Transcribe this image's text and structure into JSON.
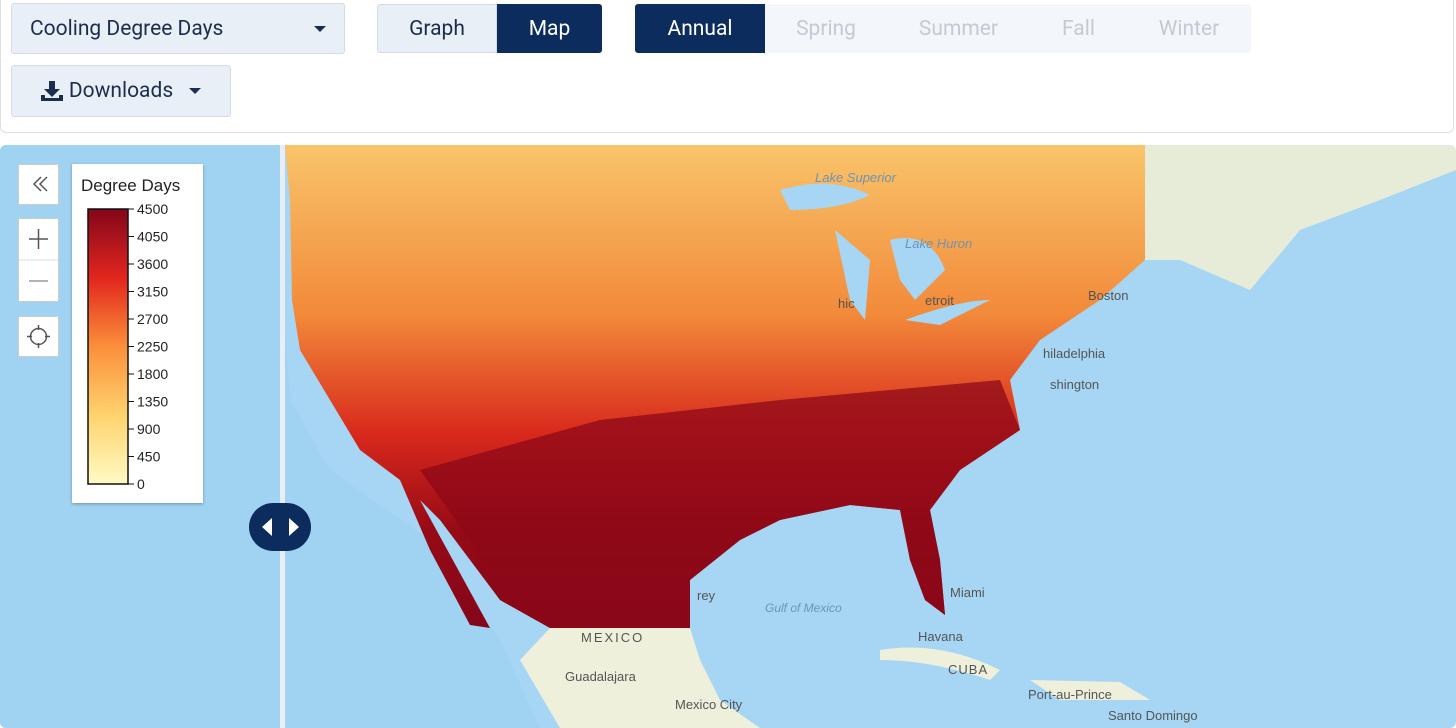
{
  "toolbar": {
    "variable": "Cooling Degree Days",
    "views": [
      "Graph",
      "Map"
    ],
    "active_view": 1,
    "seasons": [
      "Annual",
      "Spring",
      "Summer",
      "Fall",
      "Winter"
    ],
    "active_season": 0,
    "downloads": "Downloads"
  },
  "legend": {
    "title": "Degree Days",
    "lim": [
      0,
      4500
    ],
    "ticks": [
      0,
      450,
      900,
      1350,
      1800,
      2250,
      2700,
      3150,
      3600,
      4050,
      4500
    ],
    "colors": [
      "#fffbc4",
      "#fed36e",
      "#fb8f3a",
      "#e2261e",
      "#84061a"
    ]
  },
  "map": {
    "labels": [
      "Lake Superior",
      "Lake Huron",
      "hic",
      "etroit",
      "Boston",
      "hiladelphia",
      "shington",
      "rey",
      "Gulf of Mexico",
      "Miami",
      "MEXICO",
      "Havana",
      "CUBA",
      "Guadalajara",
      "Mexico City",
      "Port-au-Prince",
      "Santo Domingo"
    ]
  }
}
